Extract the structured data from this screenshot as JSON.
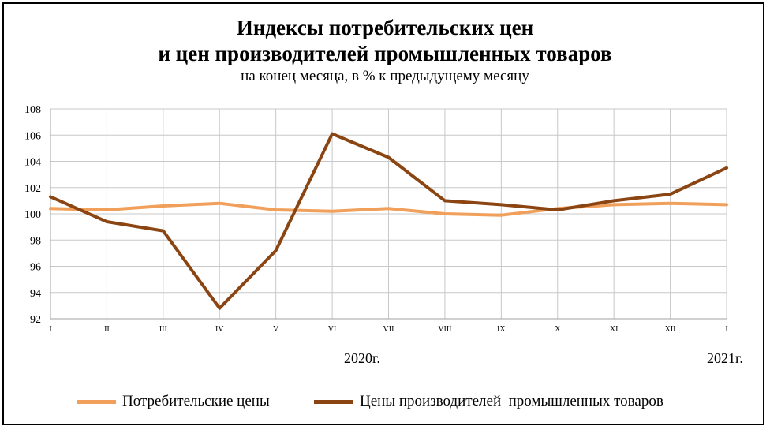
{
  "title_line1": "Индексы потребительских цен",
  "title_line2": "и цен производителей промышленных товаров",
  "subtitle": "на конец месяца, в % к предыдущему месяцу",
  "chart_data": {
    "type": "line",
    "categories": [
      "I",
      "II",
      "III",
      "IV",
      "V",
      "VI",
      "VII",
      "VIII",
      "IX",
      "X",
      "XI",
      "XII",
      "I"
    ],
    "year_labels": [
      "2020г.",
      "2021г."
    ],
    "ylim": [
      92,
      108
    ],
    "yticks": [
      92,
      94,
      96,
      98,
      100,
      102,
      104,
      106,
      108
    ],
    "grid": true,
    "legend_position": "bottom",
    "series": [
      {
        "name": "Потребительские цены",
        "color": "#F0A05A",
        "values": [
          100.4,
          100.3,
          100.6,
          100.8,
          100.3,
          100.2,
          100.4,
          100.0,
          99.9,
          100.4,
          100.7,
          100.8,
          100.7
        ]
      },
      {
        "name": "Цены производителей  промышленных товаров",
        "color": "#8B4513",
        "values": [
          101.3,
          99.4,
          98.7,
          92.8,
          97.2,
          106.1,
          104.3,
          101.0,
          100.7,
          100.3,
          101.0,
          101.5,
          103.5
        ]
      }
    ]
  }
}
